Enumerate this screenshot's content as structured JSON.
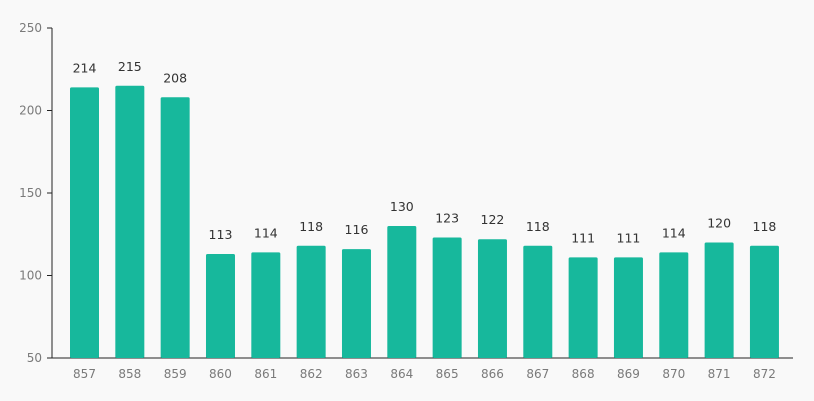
{
  "chart_data": {
    "type": "bar",
    "title": "",
    "xlabel": "",
    "ylabel": "",
    "categories": [
      "857",
      "858",
      "859",
      "860",
      "861",
      "862",
      "863",
      "864",
      "865",
      "866",
      "867",
      "868",
      "869",
      "870",
      "871",
      "872"
    ],
    "values": [
      214,
      215,
      208,
      113,
      114,
      118,
      116,
      130,
      123,
      122,
      118,
      111,
      111,
      114,
      120,
      118
    ],
    "data_labels": [
      "214",
      "215",
      "208",
      "113",
      "114",
      "118",
      "116",
      "130",
      "123",
      "122",
      "118",
      "111",
      "111",
      "114",
      "120",
      "118"
    ],
    "ylim": [
      50,
      250
    ],
    "yticks": [
      50,
      100,
      150,
      200,
      250
    ],
    "ytick_labels": [
      "50",
      "100",
      "150",
      "200",
      "250"
    ],
    "grid": false,
    "legend": "none",
    "colors": {
      "bar": "#17b89c",
      "axis": "#222222",
      "tick_text": "#7a7a7a",
      "label_text": "#333333",
      "background": "#f9f9f9"
    }
  }
}
